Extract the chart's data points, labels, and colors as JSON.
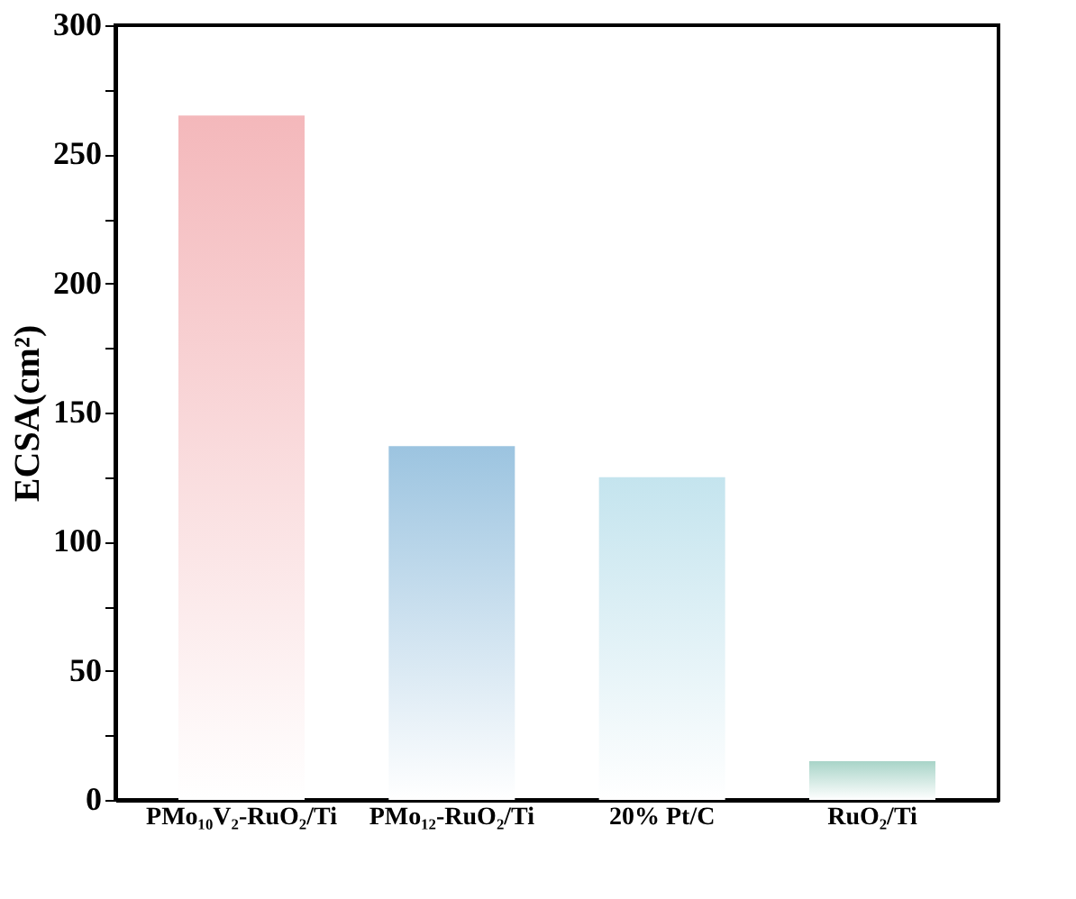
{
  "chart_data": {
    "type": "bar",
    "ylabel": "ECSA(cm²)",
    "categories": [
      "PMo₁₀V₂-RuO₂/Ti",
      "PMo₁₂-RuO₂/Ti",
      "20% Pt/C",
      "RuO₂/Ti"
    ],
    "values": [
      265,
      137,
      125,
      15
    ],
    "colors": [
      "#f4b8bb",
      "#9cc4e0",
      "#c4e4ee",
      "#a8d4c8"
    ],
    "ylim": [
      0,
      300
    ],
    "yticks": [
      0,
      {
        "value": 25,
        "label": null
      },
      50,
      {
        "value": 75,
        "label": null
      },
      100,
      {
        "value": 125,
        "label": null
      },
      150,
      {
        "value": 175,
        "label": null
      },
      200,
      {
        "value": 225,
        "label": null
      },
      250,
      {
        "value": 275,
        "label": null
      },
      300
    ],
    "grid": false
  }
}
